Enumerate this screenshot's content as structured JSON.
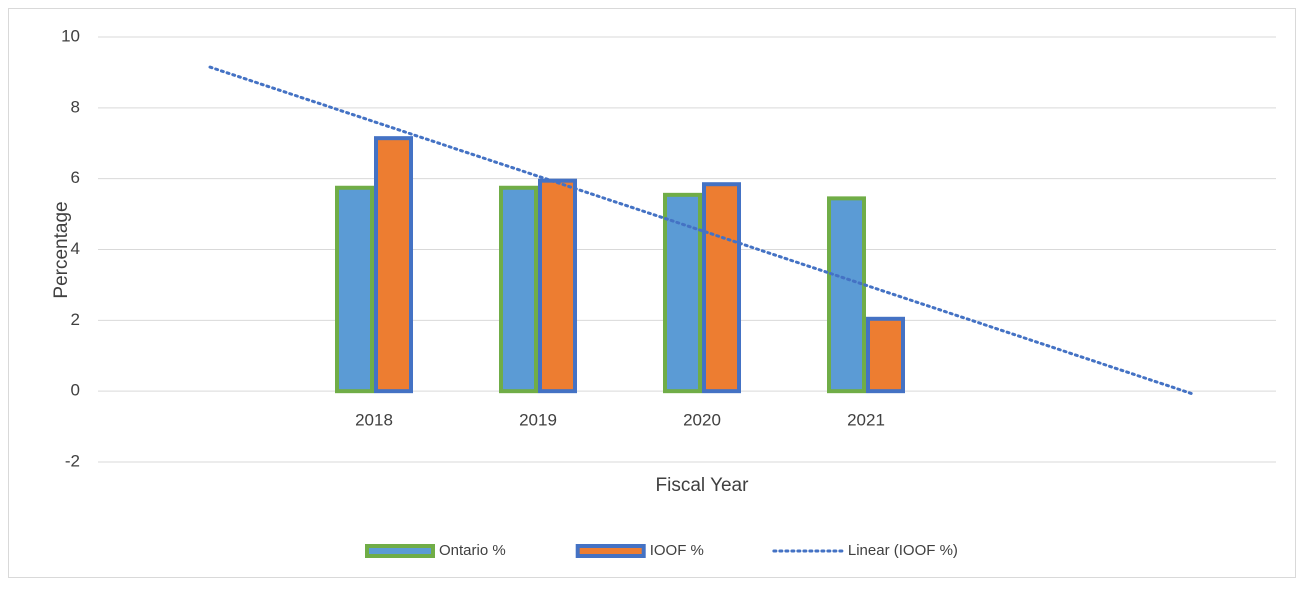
{
  "chart_data": {
    "type": "bar",
    "x_label": "Fiscal Year",
    "y_label": "Percentage",
    "categories": [
      null,
      "2018",
      "2019",
      "2020",
      "2021",
      null,
      null
    ],
    "series": [
      {
        "name": "Ontario %",
        "type": "bar",
        "color": "#5b9bd5",
        "border": "#70ad47",
        "values": [
          null,
          5.8,
          5.8,
          5.6,
          5.5,
          null,
          null
        ]
      },
      {
        "name": "IOOF %",
        "type": "bar",
        "color": "#ed7d31",
        "border": "#4472c4",
        "values": [
          null,
          7.2,
          6.0,
          5.9,
          2.1,
          null,
          null
        ]
      },
      {
        "name": "Linear (IOOF %)",
        "type": "line",
        "color": "#4472c4",
        "dotted": true,
        "values": [
          9.15,
          7.61,
          6.07,
          4.53,
          2.99,
          1.45,
          -0.09
        ]
      }
    ],
    "ylim": [
      -2,
      10
    ],
    "yticks": [
      -2,
      0,
      2,
      4,
      6,
      8,
      10
    ],
    "grid": true,
    "legend": "bottom"
  }
}
